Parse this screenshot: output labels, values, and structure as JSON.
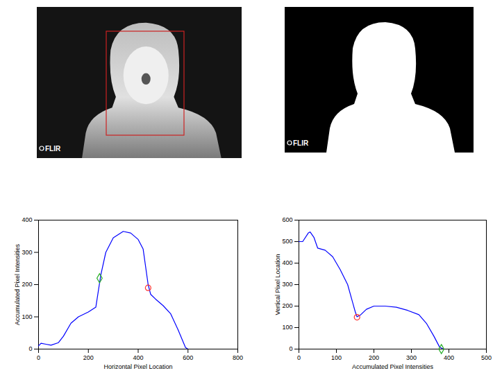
{
  "chart_data": [
    {
      "type": "line",
      "x_label": "Horizontal Pixel Location",
      "y_label": "Accumulated Pixel Intensities",
      "xlim": [
        0,
        800
      ],
      "xticks": [
        0,
        200,
        400,
        600,
        800
      ],
      "ylim": [
        0,
        400
      ],
      "yticks": [
        0,
        100,
        200,
        300,
        400
      ],
      "grid": false,
      "series": [
        {
          "type": "line",
          "color": "#0000ff",
          "x": [
            0,
            10,
            30,
            50,
            80,
            100,
            130,
            160,
            200,
            230,
            250,
            270,
            300,
            340,
            370,
            400,
            420,
            440,
            450,
            470,
            500,
            530,
            560,
            590,
            600
          ],
          "values": [
            10,
            18,
            15,
            12,
            20,
            40,
            80,
            100,
            115,
            130,
            230,
            300,
            345,
            365,
            360,
            340,
            310,
            200,
            170,
            155,
            135,
            110,
            60,
            5,
            0
          ]
        },
        {
          "type": "scatter",
          "marker": "diamond",
          "color": "#22aa22",
          "x": [
            245
          ],
          "values": [
            220
          ]
        },
        {
          "type": "scatter",
          "marker": "circle",
          "color": "#ff3333",
          "x": [
            440
          ],
          "values": [
            190
          ]
        }
      ]
    },
    {
      "type": "line",
      "x_label": "Accumulated Pixel Intensities",
      "y_label": "Vertical Pixel Location",
      "xlim": [
        0,
        500
      ],
      "xticks": [
        0,
        100,
        200,
        300,
        400,
        500
      ],
      "ylim": [
        0,
        600
      ],
      "yticks": [
        0,
        100,
        200,
        300,
        400,
        500,
        600
      ],
      "grid": false,
      "series": [
        {
          "type": "line",
          "color": "#0000ff",
          "x": [
            0,
            10,
            25,
            30,
            40,
            50,
            70,
            90,
            110,
            130,
            150,
            155,
            165,
            180,
            200,
            230,
            260,
            290,
            320,
            340,
            360,
            375,
            385
          ],
          "values": [
            500,
            500,
            540,
            545,
            520,
            470,
            460,
            430,
            370,
            300,
            175,
            150,
            160,
            185,
            200,
            200,
            195,
            180,
            160,
            120,
            60,
            10,
            0
          ]
        },
        {
          "type": "scatter",
          "marker": "circle",
          "color": "#ff3333",
          "x": [
            155
          ],
          "values": [
            148
          ]
        },
        {
          "type": "scatter",
          "marker": "diamond",
          "color": "#22aa22",
          "x": [
            380
          ],
          "values": [
            0
          ]
        }
      ]
    }
  ],
  "images": [
    {
      "logo": "FLIR"
    },
    {
      "logo": "FLIR"
    }
  ]
}
